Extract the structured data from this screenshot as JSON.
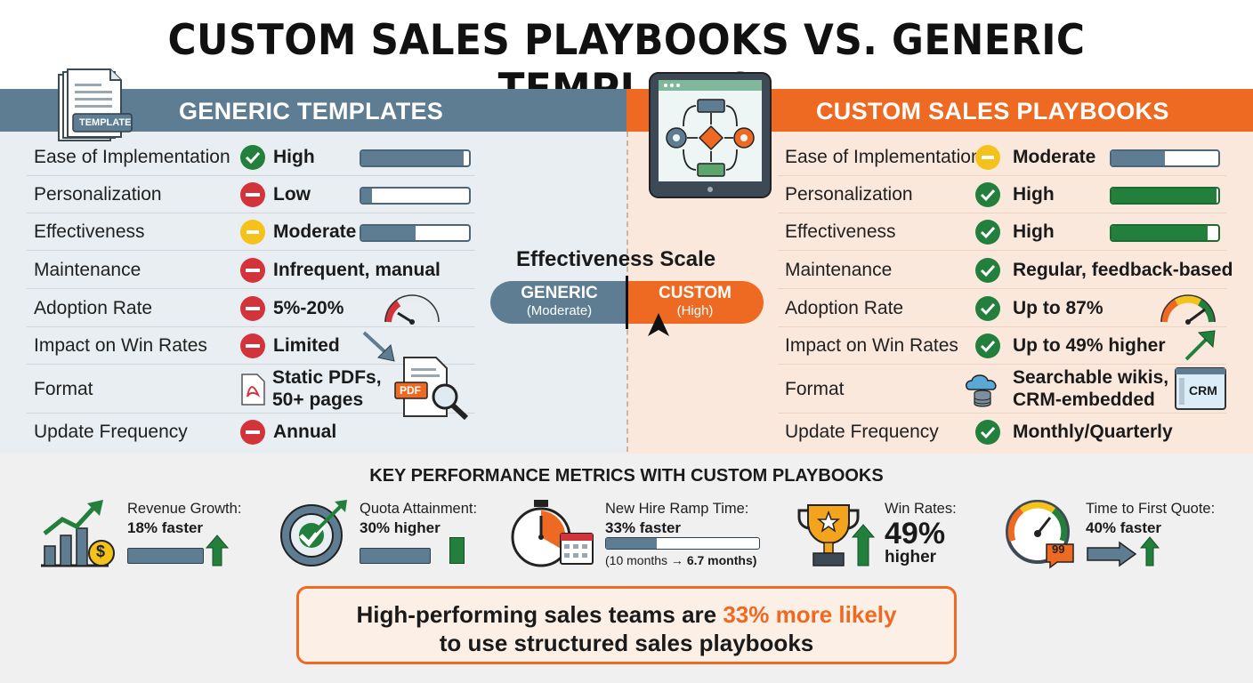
{
  "title": "CUSTOM SALES PLAYBOOKS VS. GENERIC TEMPLATES",
  "colors": {
    "generic": "#5e7d93",
    "custom": "#ee6a22",
    "positive": "#23803c",
    "negative": "#d3333a",
    "neutral": "#f5c21b"
  },
  "generic": {
    "header": "GENERIC TEMPLATES",
    "badge": "TEMPLATE",
    "rows": [
      {
        "label": "Ease of Implementation",
        "status": "positive",
        "value": "High",
        "level": 0.95
      },
      {
        "label": "Personalization",
        "status": "negative",
        "value": "Low",
        "level": 0.1
      },
      {
        "label": "Effectiveness",
        "status": "neutral",
        "value": "Moderate",
        "level": 0.5
      },
      {
        "label": "Maintenance",
        "status": "negative",
        "value": "Infrequent, manual"
      },
      {
        "label": "Adoption Rate",
        "status": "negative",
        "value": "5%-20%",
        "gauge": "low"
      },
      {
        "label": "Impact on Win Rates",
        "status": "negative",
        "value": "Limited",
        "trend": "down"
      },
      {
        "label": "Format",
        "icon": "pdf-icon",
        "value_line1": "Static PDFs,",
        "value_line2": "50+ pages",
        "illustration": "PDF"
      },
      {
        "label": "Update Frequency",
        "status": "negative",
        "value": "Annual"
      }
    ]
  },
  "custom": {
    "header": "CUSTOM SALES PLAYBOOKS",
    "rows": [
      {
        "label": "Ease of Implementation",
        "status": "neutral",
        "value": "Moderate",
        "level": 0.5
      },
      {
        "label": "Personalization",
        "status": "positive",
        "value": "High",
        "level": 0.98
      },
      {
        "label": "Effectiveness",
        "status": "positive",
        "value": "High",
        "level": 0.9
      },
      {
        "label": "Maintenance",
        "status": "positive",
        "value": "Regular, feedback-based"
      },
      {
        "label": "Adoption Rate",
        "status": "positive",
        "value": "Up to 87%",
        "gauge": "high"
      },
      {
        "label": "Impact on Win Rates",
        "status": "positive",
        "value": "Up to 49% higher",
        "trend": "up"
      },
      {
        "label": "Format",
        "icon": "cloud-database-icon",
        "value_line1": "Searchable wikis,",
        "value_line2": "CRM-embedded",
        "illustration": "CRM"
      },
      {
        "label": "Update Frequency",
        "status": "positive",
        "value": "Monthly/Quarterly"
      }
    ]
  },
  "scale": {
    "title": "Effectiveness Scale",
    "left_label": "GENERIC",
    "left_sub": "(Moderate)",
    "right_label": "CUSTOM",
    "right_sub": "(High)"
  },
  "metrics": {
    "title": "KEY PERFORMANCE METRICS WITH CUSTOM PLAYBOOKS",
    "items": [
      {
        "label": "Revenue Growth:",
        "value": "18% faster",
        "icon": "growth-chart-icon"
      },
      {
        "label": "Quota Attainment:",
        "value": "30% higher",
        "icon": "target-icon"
      },
      {
        "label": "New Hire Ramp Time:",
        "value": "33% faster",
        "note_prefix": "(10 months → ",
        "note_bold": "6.7 months)",
        "icon": "stopwatch-icon",
        "progress": 0.33
      },
      {
        "label": "Win Rates:",
        "value_big": "49%",
        "value": "higher",
        "icon": "trophy-icon"
      },
      {
        "label": "Time to First Quote:",
        "value": "40% faster",
        "icon": "speedometer-icon"
      }
    ]
  },
  "callout": {
    "text_before": "High-performing sales teams are ",
    "highlight": "33% more likely",
    "line2": "to use structured sales playbooks"
  }
}
